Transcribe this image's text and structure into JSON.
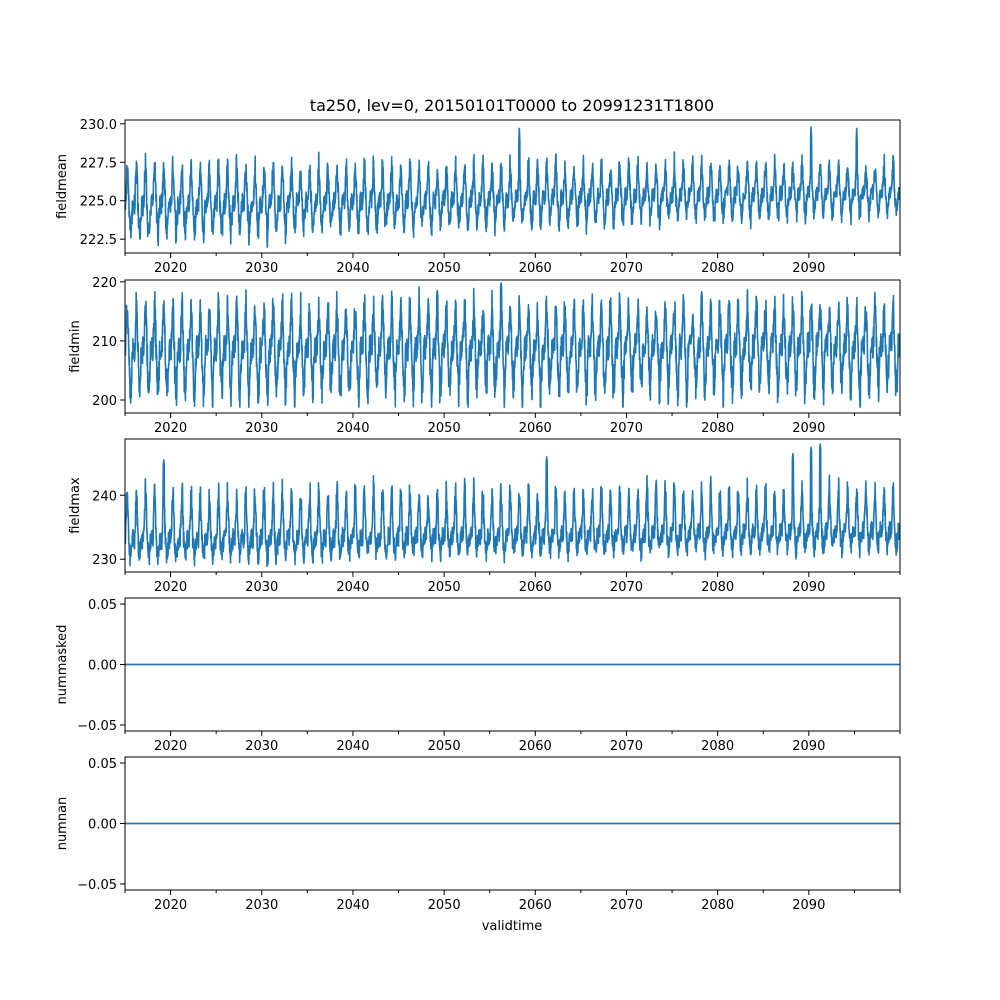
{
  "chart_data": {
    "type": "line",
    "title": "ta250, lev=0, 20150101T0000 to 20991231T1800",
    "xlabel": "validtime",
    "xlim": [
      2015.0,
      2100.0
    ],
    "x_major_ticks": [
      2020,
      2030,
      2040,
      2050,
      2060,
      2070,
      2080,
      2090
    ],
    "x_tick_labels": [
      "2020",
      "2030",
      "2040",
      "2050",
      "2060",
      "2070",
      "2080",
      "2090"
    ],
    "x_minor_ticks": [
      2015,
      2025,
      2035,
      2045,
      2055,
      2065,
      2075,
      2085,
      2095,
      2100
    ],
    "line_color": "#1f77b4",
    "panels": [
      {
        "ylabel": "fieldmean",
        "ylim": [
          221.6,
          230.25
        ],
        "yticks": [
          222.5,
          225.0,
          227.5,
          230.0
        ],
        "ytick_labels": [
          "222.5",
          "225.0",
          "227.5",
          "230.0"
        ],
        "series": {
          "name": "fieldmean",
          "baseline_start": 224.7,
          "baseline_end": 225.6,
          "min_start": 222.4,
          "min_end": 224.0,
          "typical_annual_peak": 227.5,
          "max_value": 229.8,
          "min_value": 221.9,
          "peak_years": [
            2058,
            2090,
            2095
          ],
          "peak_values": [
            229.7,
            229.8,
            229.7
          ]
        }
      },
      {
        "ylabel": "fieldmin",
        "ylim": [
          197.8,
          220.3
        ],
        "yticks": [
          200,
          210,
          220
        ],
        "ytick_labels": [
          "200",
          "210",
          "220"
        ],
        "series": {
          "name": "fieldmin",
          "baseline_start": 208.5,
          "baseline_end": 209.3,
          "min_start": 199.5,
          "min_end": 200.5,
          "typical_annual_peak": 216.5,
          "max_value": 219.8,
          "min_value": 198.8,
          "peak_years": [
            2056,
            2049,
            2078
          ],
          "peak_values": [
            219.8,
            218.5,
            218.3
          ]
        }
      },
      {
        "ylabel": "fieldmax",
        "ylim": [
          228.0,
          248.8
        ],
        "yticks": [
          230,
          240
        ],
        "ytick_labels": [
          "230",
          "240"
        ],
        "series": {
          "name": "fieldmax",
          "baseline_start": 233.0,
          "baseline_end": 234.5,
          "min_start": 230.0,
          "min_end": 231.5,
          "typical_annual_peak": 241.5,
          "max_value": 248.0,
          "min_value": 228.5,
          "peak_years": [
            2019,
            2091,
            2090,
            2061,
            2088
          ],
          "peak_values": [
            245.5,
            248.0,
            247.5,
            246.0,
            246.5
          ]
        }
      },
      {
        "ylabel": "nummasked",
        "ylim": [
          -0.055,
          0.055
        ],
        "yticks": [
          -0.05,
          0.0,
          0.05
        ],
        "ytick_labels": [
          "−0.05",
          "0.00",
          "0.05"
        ],
        "series": {
          "name": "nummasked",
          "constant": 0.0
        }
      },
      {
        "ylabel": "numnan",
        "ylim": [
          -0.055,
          0.055
        ],
        "yticks": [
          -0.05,
          0.0,
          0.05
        ],
        "ytick_labels": [
          "−0.05",
          "0.00",
          "0.05"
        ],
        "series": {
          "name": "numnan",
          "constant": 0.0
        }
      }
    ]
  }
}
